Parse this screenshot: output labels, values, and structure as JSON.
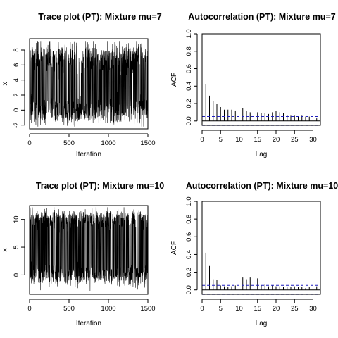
{
  "chart_data": [
    {
      "type": "line",
      "title": "Trace plot (PT): Mixture mu=7",
      "xlabel": "Iteration",
      "ylabel": "x",
      "xlim": [
        0,
        1500
      ],
      "ylim": [
        -2.5,
        9.5
      ],
      "xticks": [
        "0",
        "500",
        "1000",
        "1500"
      ],
      "yticks": [
        "-2",
        "0",
        "2",
        "4",
        "6",
        "8"
      ],
      "series": [
        {
          "modes": [
            0,
            7
          ],
          "iterations": 1500
        }
      ]
    },
    {
      "type": "bar",
      "title": "Autocorrelation (PT): Mixture mu=7",
      "xlabel": "Lag",
      "ylabel": "ACF",
      "xlim": [
        0,
        32
      ],
      "ylim": [
        -0.05,
        1.0
      ],
      "xticks": [
        "0",
        "5",
        "10",
        "15",
        "20",
        "25",
        "30"
      ],
      "yticks": [
        "0.0",
        "0.2",
        "0.4",
        "0.6",
        "0.8",
        "1.0"
      ],
      "lags": [
        0,
        1,
        2,
        3,
        4,
        5,
        6,
        7,
        8,
        9,
        10,
        11,
        12,
        13,
        14,
        15,
        16,
        17,
        18,
        19,
        20,
        21,
        22,
        23,
        24,
        25,
        26,
        27,
        28,
        29,
        30,
        31
      ],
      "values": [
        1.0,
        0.42,
        0.29,
        0.23,
        0.2,
        0.16,
        0.13,
        0.13,
        0.13,
        0.12,
        0.13,
        0.15,
        0.12,
        0.1,
        0.11,
        0.1,
        0.09,
        0.09,
        0.08,
        0.1,
        0.12,
        0.1,
        0.09,
        0.07,
        0.06,
        0.06,
        0.05,
        0.06,
        0.05,
        0.05,
        0.04,
        0.03
      ],
      "confidence_bound": 0.051
    },
    {
      "type": "line",
      "title": "Trace plot (PT): Mixture mu=10",
      "xlabel": "Iteration",
      "ylabel": "x",
      "xlim": [
        0,
        1500
      ],
      "ylim": [
        -3.5,
        12.5
      ],
      "xticks": [
        "0",
        "500",
        "1000",
        "1500"
      ],
      "yticks": [
        "0",
        "5",
        "10"
      ],
      "series": [
        {
          "modes": [
            0,
            10
          ],
          "iterations": 1500
        }
      ]
    },
    {
      "type": "bar",
      "title": "Autocorrelation (PT): Mixture mu=10",
      "xlabel": "Lag",
      "ylabel": "ACF",
      "xlim": [
        0,
        32
      ],
      "ylim": [
        -0.05,
        1.0
      ],
      "xticks": [
        "0",
        "5",
        "10",
        "15",
        "20",
        "25",
        "30"
      ],
      "yticks": [
        "0.0",
        "0.2",
        "0.4",
        "0.6",
        "0.8",
        "1.0"
      ],
      "lags": [
        0,
        1,
        2,
        3,
        4,
        5,
        6,
        7,
        8,
        9,
        10,
        11,
        12,
        13,
        14,
        15,
        16,
        17,
        18,
        19,
        20,
        21,
        22,
        23,
        24,
        25,
        26,
        27,
        28,
        29,
        30,
        31
      ],
      "values": [
        1.0,
        0.42,
        0.27,
        0.12,
        0.11,
        0.05,
        0.04,
        0.03,
        0.04,
        0.05,
        0.13,
        0.14,
        0.12,
        0.14,
        0.1,
        0.13,
        0.05,
        0.06,
        0.04,
        0.05,
        0.04,
        0.04,
        0.03,
        0.03,
        0.03,
        0.04,
        0.03,
        0.03,
        0.02,
        0.03,
        0.05,
        0.04
      ],
      "confidence_bound": 0.051
    }
  ]
}
